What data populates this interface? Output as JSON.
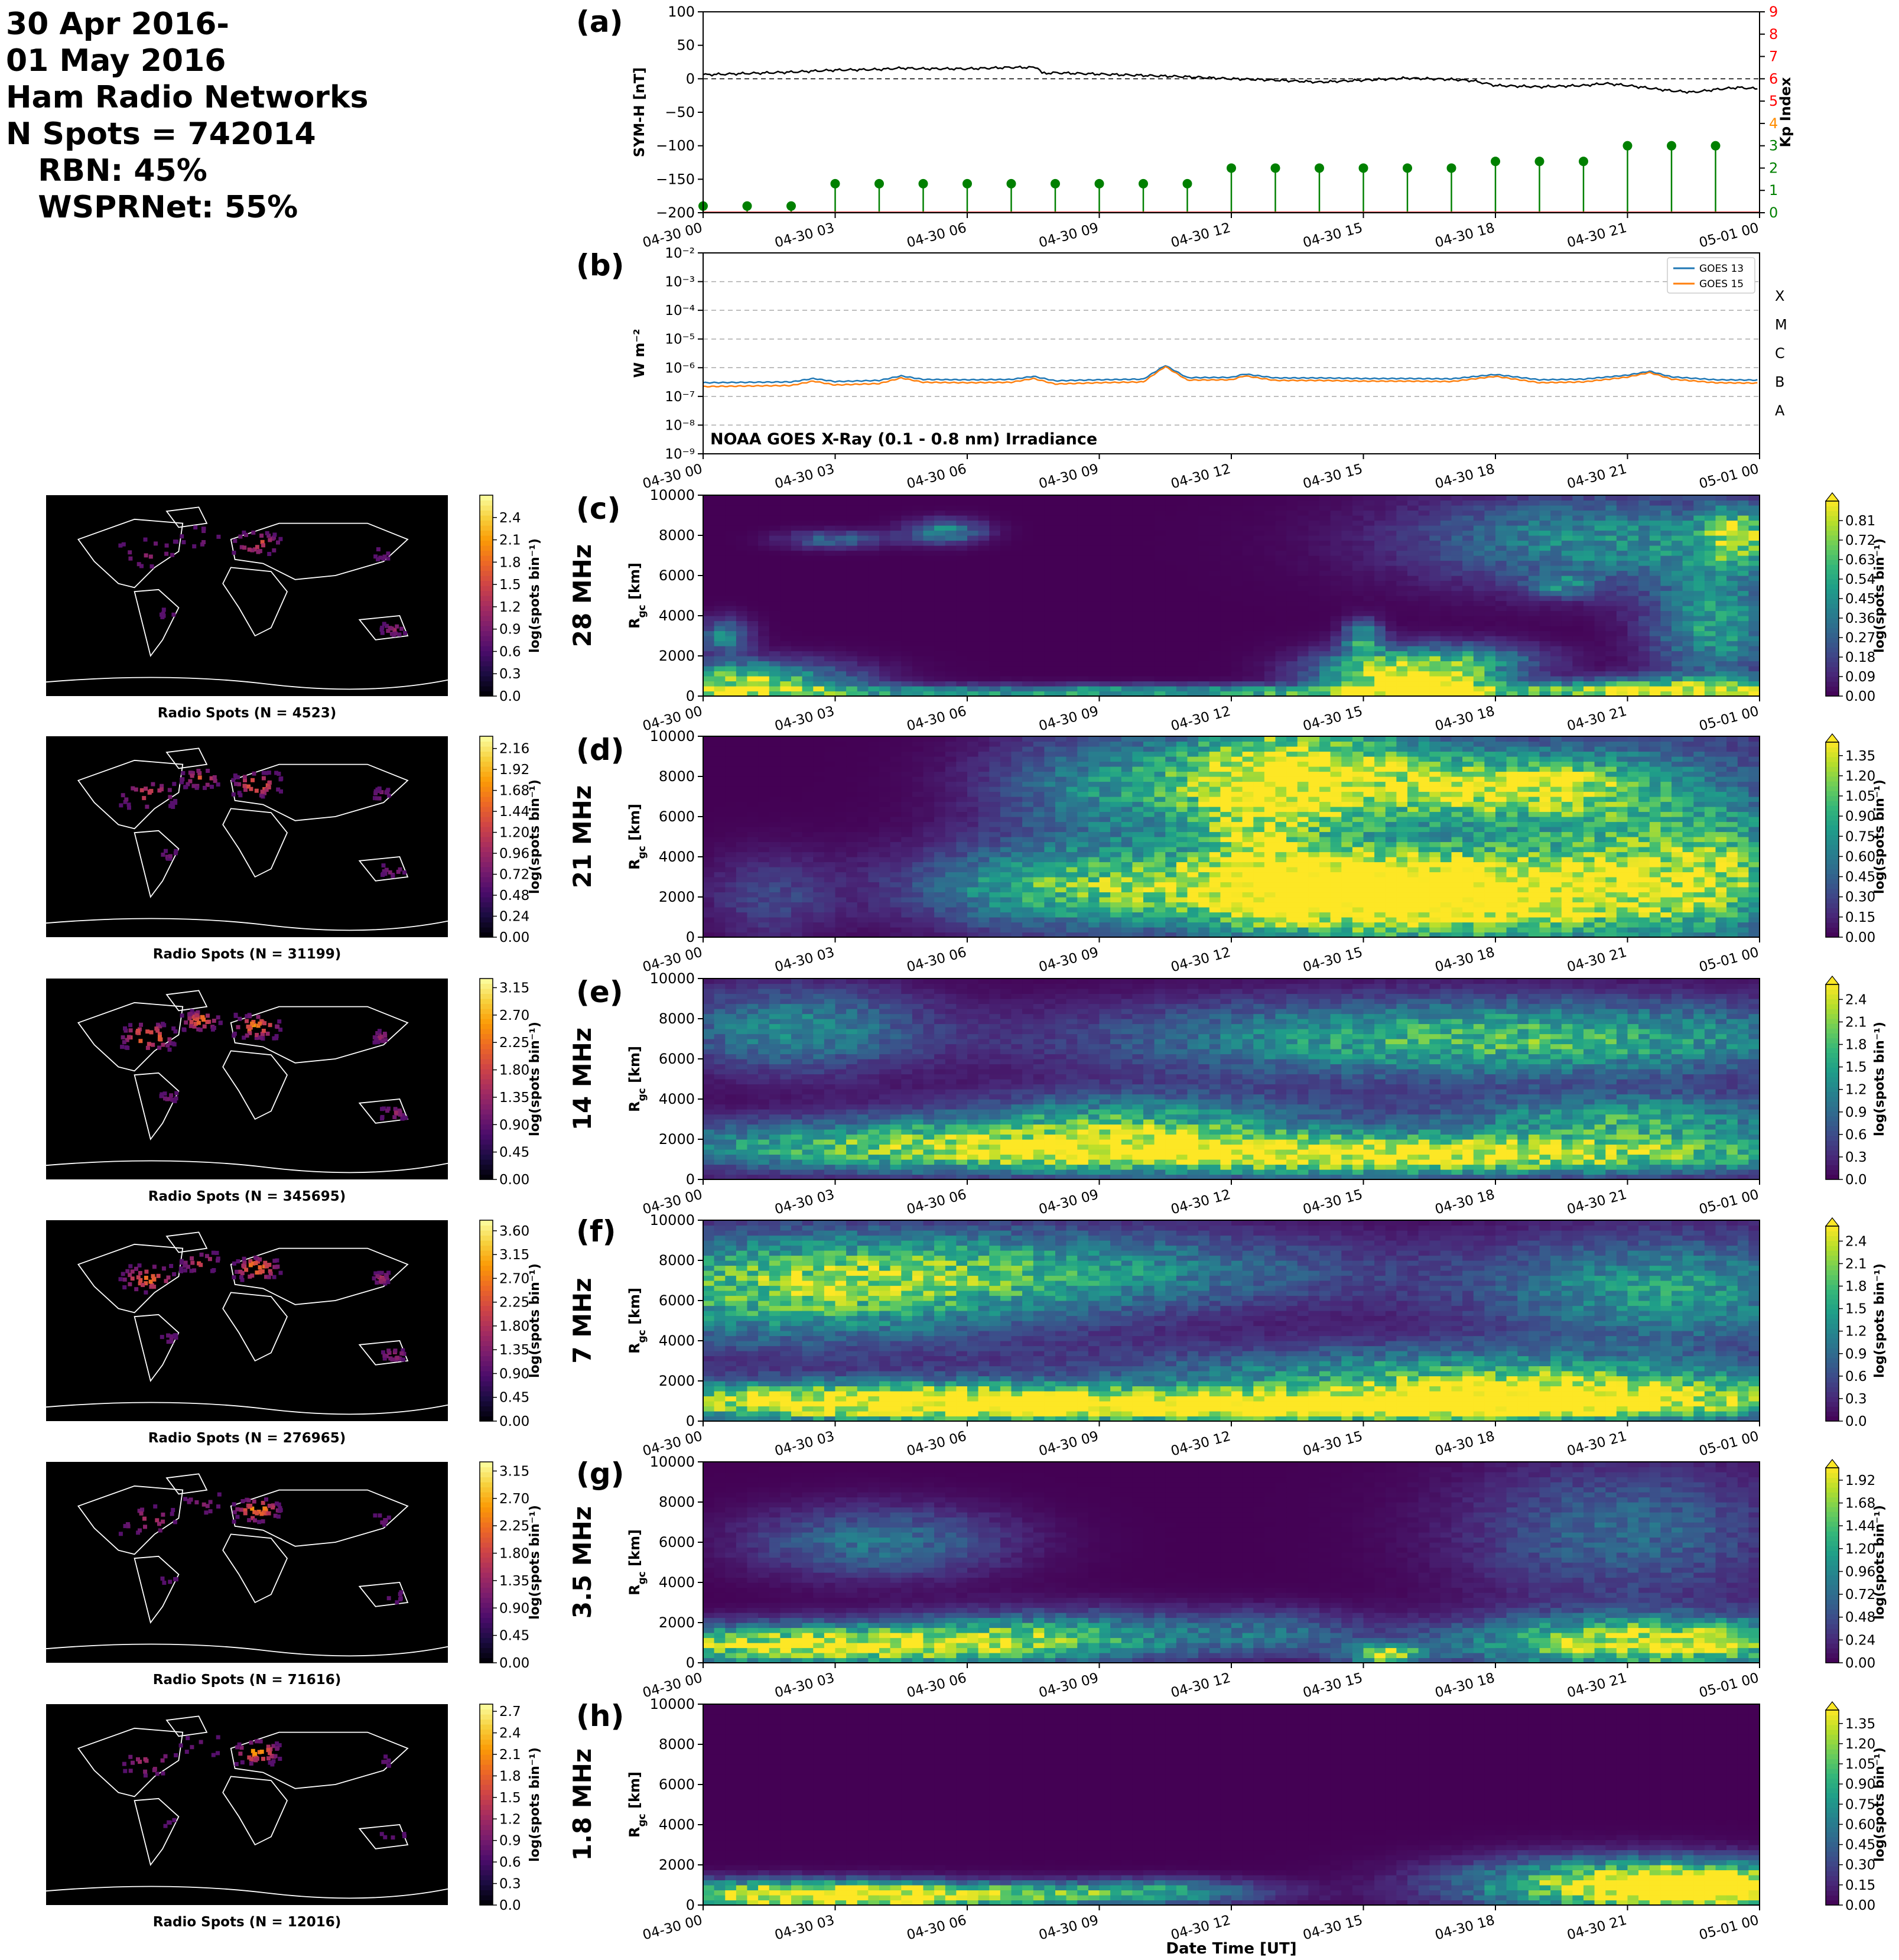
{
  "header": {
    "line1": "30 Apr 2016-",
    "line2": "01 May 2016",
    "line3": "Ham Radio Networks",
    "line4": "N Spots = 742014",
    "line5": "   RBN: 45%",
    "line6": "   WSPRNet: 55%"
  },
  "panel_labels": [
    "(a)",
    "(b)",
    "(c)",
    "(d)",
    "(e)",
    "(f)",
    "(g)",
    "(h)"
  ],
  "time_ticks": [
    "04-30 00",
    "04-30 03",
    "04-30 06",
    "04-30 09",
    "04-30 12",
    "04-30 15",
    "04-30 18",
    "04-30 21",
    "05-01 00"
  ],
  "xlabel_bottom": "Date Time [UT]",
  "colors": {
    "symh": "#000000",
    "kp": "#008000",
    "goes13": "#1f77b4",
    "goes15": "#ff7f0e",
    "kp_axis": "#ff0000"
  },
  "chart_data": [
    {
      "id": "a",
      "type": "line",
      "ylabel": "SYM-H [nT]",
      "ylim": [
        -200,
        100
      ],
      "yticks": [
        "100",
        "50",
        "0",
        "−50",
        "−100",
        "−150",
        "−200"
      ],
      "y2label": "Kp Index",
      "y2lim": [
        0,
        9
      ],
      "y2ticks": [
        "0",
        "1",
        "2",
        "3",
        "4",
        "5",
        "6",
        "7",
        "8",
        "9"
      ],
      "symh": {
        "x_hours": [
          0,
          1,
          2,
          3,
          4,
          4.5,
          5,
          6,
          7,
          7.6,
          7.7,
          8,
          9,
          10,
          11,
          12,
          13,
          14,
          15,
          16,
          17,
          17.5,
          18,
          19,
          20,
          20.5,
          21,
          22,
          22.5,
          23,
          23.5,
          24
        ],
        "values": [
          6,
          8,
          10,
          13,
          14,
          16,
          15,
          15,
          17,
          17,
          8,
          9,
          7,
          5,
          3,
          0,
          -2,
          -5,
          -2,
          1,
          -1,
          -3,
          -10,
          -12,
          -10,
          -7,
          -10,
          -18,
          -20,
          -16,
          -13,
          -15
        ]
      },
      "kp": {
        "x_hours": [
          0,
          1,
          2,
          3,
          4,
          5,
          6,
          7,
          8,
          9,
          10,
          11,
          12,
          13,
          14,
          15,
          16,
          17,
          18,
          19,
          20,
          21,
          22,
          23
        ],
        "values": [
          0.3,
          0.3,
          0.3,
          1.3,
          1.3,
          1.3,
          1.3,
          1.3,
          1.3,
          1.3,
          1.3,
          1.3,
          2.0,
          2.0,
          2.0,
          2.0,
          2.0,
          2.0,
          2.3,
          2.3,
          2.3,
          3.0,
          3.0,
          3.0
        ]
      }
    },
    {
      "id": "b",
      "type": "line",
      "ylabel": "W m⁻²",
      "yscale": "log",
      "ylim": [
        1e-09,
        0.01
      ],
      "yticks": [
        "10⁻²",
        "10⁻³",
        "10⁻⁴",
        "10⁻⁵",
        "10⁻⁶",
        "10⁻⁷",
        "10⁻⁸",
        "10⁻⁹"
      ],
      "class_labels": [
        "X",
        "M",
        "C",
        "B",
        "A"
      ],
      "annotation": "NOAA GOES X-Ray (0.1 - 0.8 nm) Irradiance",
      "legend_position": "top-right",
      "series": [
        {
          "name": "GOES 13",
          "x_hours": [
            0,
            1,
            2,
            2.5,
            3,
            4,
            4.5,
            5,
            6,
            7,
            7.5,
            8,
            9,
            10,
            10.5,
            11,
            12,
            12.3,
            13,
            14,
            15,
            16,
            17,
            18,
            19,
            20,
            21,
            21.5,
            22,
            23,
            24
          ],
          "values": [
            3e-07,
            3.1e-07,
            3.2e-07,
            4.2e-07,
            3.3e-07,
            3.6e-07,
            5.2e-07,
            3.9e-07,
            3.8e-07,
            3.9e-07,
            5e-07,
            3.5e-07,
            3.8e-07,
            4e-07,
            1.2e-06,
            4.5e-07,
            4.6e-07,
            6e-07,
            4.4e-07,
            4.4e-07,
            4.2e-07,
            4.2e-07,
            4.1e-07,
            5.8e-07,
            3.8e-07,
            4e-07,
            5.5e-07,
            7.5e-07,
            4.8e-07,
            3.8e-07,
            3.7e-07
          ]
        },
        {
          "name": "GOES 15",
          "x_hours": [
            0,
            1,
            2,
            2.5,
            3,
            4,
            4.5,
            5,
            6,
            7,
            7.5,
            8,
            9,
            10,
            10.5,
            11,
            12,
            12.3,
            13,
            14,
            15,
            16,
            17,
            18,
            19,
            20,
            21,
            21.5,
            22,
            23,
            24
          ],
          "values": [
            2.2e-07,
            2.3e-07,
            2.4e-07,
            3.4e-07,
            2.5e-07,
            2.8e-07,
            4.4e-07,
            3.1e-07,
            3e-07,
            3.1e-07,
            4.2e-07,
            2.7e-07,
            3e-07,
            3.2e-07,
            1.1e-06,
            3.7e-07,
            3.8e-07,
            5.2e-07,
            3.6e-07,
            3.6e-07,
            3.4e-07,
            3.4e-07,
            3.3e-07,
            5e-07,
            3e-07,
            3.2e-07,
            4.7e-07,
            6.8e-07,
            4e-07,
            3e-07,
            2.9e-07
          ]
        }
      ]
    },
    {
      "id": "c",
      "type": "heatmap",
      "band": "28 MHz",
      "map_title": "Radio Spots (N = 4523)",
      "ylabel": "R_gc [km]",
      "ylim": [
        0,
        10000
      ],
      "yticks": [
        "0",
        "2000",
        "4000",
        "6000",
        "8000",
        "10000"
      ],
      "colorbar_label": "log(spots bin⁻¹)",
      "vmax": 0.9,
      "extend_max": true,
      "colorbar_ticks": [
        "0.00",
        "0.09",
        "0.18",
        "0.27",
        "0.36",
        "0.45",
        "0.54",
        "0.63",
        "0.72",
        "0.81"
      ],
      "map_vmax": 2.7,
      "map_colorbar_ticks": [
        "0.0",
        "0.3",
        "0.6",
        "0.9",
        "1.2",
        "1.5",
        "1.8",
        "2.1",
        "2.4"
      ],
      "blobs": [
        [
          1,
          700,
          1.6,
          700,
          0.75
        ],
        [
          0.5,
          3000,
          0.4,
          600,
          0.4
        ],
        [
          3,
          7800,
          0.8,
          300,
          0.3
        ],
        [
          5.5,
          8200,
          0.6,
          400,
          0.45
        ],
        [
          12.5,
          200,
          11.5,
          250,
          0.55
        ],
        [
          15.5,
          1200,
          1.2,
          800,
          0.65
        ],
        [
          16.5,
          600,
          1,
          500,
          0.8
        ],
        [
          15,
          2900,
          0.3,
          600,
          0.5
        ],
        [
          17.5,
          1800,
          1.2,
          600,
          0.4
        ],
        [
          20.5,
          7800,
          3,
          1600,
          0.45
        ],
        [
          23,
          3500,
          1,
          2000,
          0.5
        ],
        [
          19.5,
          5500,
          0.5,
          400,
          0.3
        ],
        [
          22,
          400,
          2,
          400,
          0.6
        ],
        [
          23.5,
          8000,
          0.6,
          1000,
          0.55
        ]
      ]
    },
    {
      "id": "d",
      "type": "heatmap",
      "band": "21 MHz",
      "map_title": "Radio Spots (N = 31199)",
      "ylabel": "R_gc [km]",
      "ylim": [
        0,
        10000
      ],
      "yticks": [
        "0",
        "2000",
        "4000",
        "6000",
        "8000",
        "10000"
      ],
      "colorbar_label": "log(spots bin⁻¹)",
      "vmax": 1.45,
      "extend_max": true,
      "colorbar_ticks": [
        "0.00",
        "0.15",
        "0.30",
        "0.45",
        "0.60",
        "0.75",
        "0.90",
        "1.05",
        "1.20",
        "1.35"
      ],
      "map_vmax": 2.3,
      "map_colorbar_ticks": [
        "0.00",
        "0.24",
        "0.48",
        "0.72",
        "0.96",
        "1.20",
        "1.44",
        "1.68",
        "1.92",
        "2.16"
      ],
      "blobs": [
        [
          8.5,
          2500,
          2.5,
          1500,
          1.0
        ],
        [
          9.5,
          7500,
          2,
          2000,
          0.7
        ],
        [
          14.5,
          2300,
          2.5,
          1500,
          1.45
        ],
        [
          14,
          8000,
          2,
          2000,
          1.3
        ],
        [
          18,
          2000,
          3,
          1500,
          1.0
        ],
        [
          18.5,
          7500,
          2,
          1000,
          1.0
        ],
        [
          21,
          5000,
          3,
          4000,
          0.75
        ],
        [
          23,
          3000,
          1.5,
          2000,
          0.6
        ],
        [
          12.5,
          5500,
          1,
          3500,
          0.6
        ],
        [
          1.5,
          2000,
          1,
          1500,
          0.3
        ]
      ]
    },
    {
      "id": "e",
      "type": "heatmap",
      "band": "14 MHz",
      "map_title": "Radio Spots (N = 345695)",
      "ylabel": "R_gc [km]",
      "ylim": [
        0,
        10000
      ],
      "yticks": [
        "0",
        "2000",
        "4000",
        "6000",
        "8000",
        "10000"
      ],
      "colorbar_label": "log(spots bin⁻¹)",
      "vmax": 2.6,
      "extend_max": true,
      "colorbar_ticks": [
        "0.0",
        "0.3",
        "0.6",
        "0.9",
        "1.2",
        "1.5",
        "1.8",
        "2.1",
        "2.4"
      ],
      "map_vmax": 3.3,
      "map_colorbar_ticks": [
        "0.00",
        "0.45",
        "0.90",
        "1.35",
        "1.80",
        "2.25",
        "2.70",
        "3.15"
      ],
      "blobs": [
        [
          16,
          1200,
          7,
          700,
          2.6
        ],
        [
          5,
          1800,
          5,
          900,
          1.6
        ],
        [
          18,
          7000,
          6,
          1400,
          1.8
        ],
        [
          10,
          3000,
          3,
          1000,
          1.3
        ],
        [
          21,
          3000,
          3,
          900,
          1.5
        ],
        [
          2,
          7500,
          2,
          1500,
          1.2
        ]
      ]
    },
    {
      "id": "f",
      "type": "heatmap",
      "band": "7 MHz",
      "map_title": "Radio Spots (N = 276965)",
      "ylabel": "R_gc [km]",
      "ylim": [
        0,
        10000
      ],
      "yticks": [
        "0",
        "2000",
        "4000",
        "6000",
        "8000",
        "10000"
      ],
      "colorbar_label": "log(spots bin⁻¹)",
      "vmax": 2.6,
      "extend_max": true,
      "colorbar_ticks": [
        "0.0",
        "0.3",
        "0.6",
        "0.9",
        "1.2",
        "1.5",
        "1.8",
        "2.1",
        "2.4"
      ],
      "map_vmax": 3.8,
      "map_colorbar_ticks": [
        "0.00",
        "0.45",
        "0.90",
        "1.35",
        "1.80",
        "2.25",
        "2.70",
        "3.15",
        "3.60"
      ],
      "blobs": [
        [
          4,
          1000,
          5,
          700,
          2.6
        ],
        [
          14,
          700,
          6,
          500,
          2.5
        ],
        [
          20,
          1300,
          4,
          800,
          2.2
        ],
        [
          2,
          6500,
          4,
          2000,
          1.6
        ],
        [
          8,
          7500,
          5,
          1500,
          1.2
        ],
        [
          22,
          6500,
          3,
          2000,
          1.4
        ],
        [
          16,
          2500,
          5,
          1000,
          1.2
        ]
      ]
    },
    {
      "id": "g",
      "type": "heatmap",
      "band": "3.5 MHz",
      "map_title": "Radio Spots (N = 71616)",
      "ylabel": "R_gc [km]",
      "ylim": [
        0,
        10000
      ],
      "yticks": [
        "0",
        "2000",
        "4000",
        "6000",
        "8000",
        "10000"
      ],
      "colorbar_label": "log(spots bin⁻¹)",
      "vmax": 2.05,
      "extend_max": true,
      "colorbar_ticks": [
        "0.00",
        "0.24",
        "0.48",
        "0.72",
        "0.96",
        "1.20",
        "1.44",
        "1.68",
        "1.92"
      ],
      "map_vmax": 3.3,
      "map_colorbar_ticks": [
        "0.00",
        "0.45",
        "0.90",
        "1.35",
        "1.80",
        "2.25",
        "2.70",
        "3.15"
      ],
      "blobs": [
        [
          2.5,
          900,
          3.5,
          700,
          2.0
        ],
        [
          21.5,
          1000,
          3,
          900,
          2.05
        ],
        [
          8,
          1300,
          2.5,
          900,
          1.1
        ],
        [
          4,
          6000,
          2,
          1200,
          0.8
        ],
        [
          21,
          6500,
          2.5,
          2500,
          0.7
        ],
        [
          15.5,
          400,
          0.6,
          350,
          1.6
        ],
        [
          13,
          1500,
          1.5,
          800,
          0.6
        ]
      ]
    },
    {
      "id": "h",
      "type": "heatmap",
      "band": "1.8 MHz",
      "map_title": "Radio Spots (N = 12016)",
      "ylabel": "R_gc [km]",
      "ylim": [
        0,
        10000
      ],
      "yticks": [
        "0",
        "2000",
        "4000",
        "6000",
        "8000",
        "10000"
      ],
      "colorbar_label": "log(spots bin⁻¹)",
      "vmax": 1.45,
      "extend_max": true,
      "colorbar_ticks": [
        "0.00",
        "0.15",
        "0.30",
        "0.45",
        "0.60",
        "0.75",
        "0.90",
        "1.05",
        "1.20",
        "1.35"
      ],
      "map_vmax": 2.8,
      "map_colorbar_ticks": [
        "0.0",
        "0.3",
        "0.6",
        "0.9",
        "1.2",
        "1.5",
        "1.8",
        "2.1",
        "2.4",
        "2.7"
      ],
      "blobs": [
        [
          2,
          500,
          3,
          500,
          1.45
        ],
        [
          7,
          500,
          3,
          400,
          0.9
        ],
        [
          21,
          1000,
          2.5,
          900,
          1.45
        ],
        [
          23,
          800,
          1.5,
          700,
          1.2
        ],
        [
          10.5,
          800,
          1.5,
          400,
          0.5
        ]
      ]
    }
  ]
}
